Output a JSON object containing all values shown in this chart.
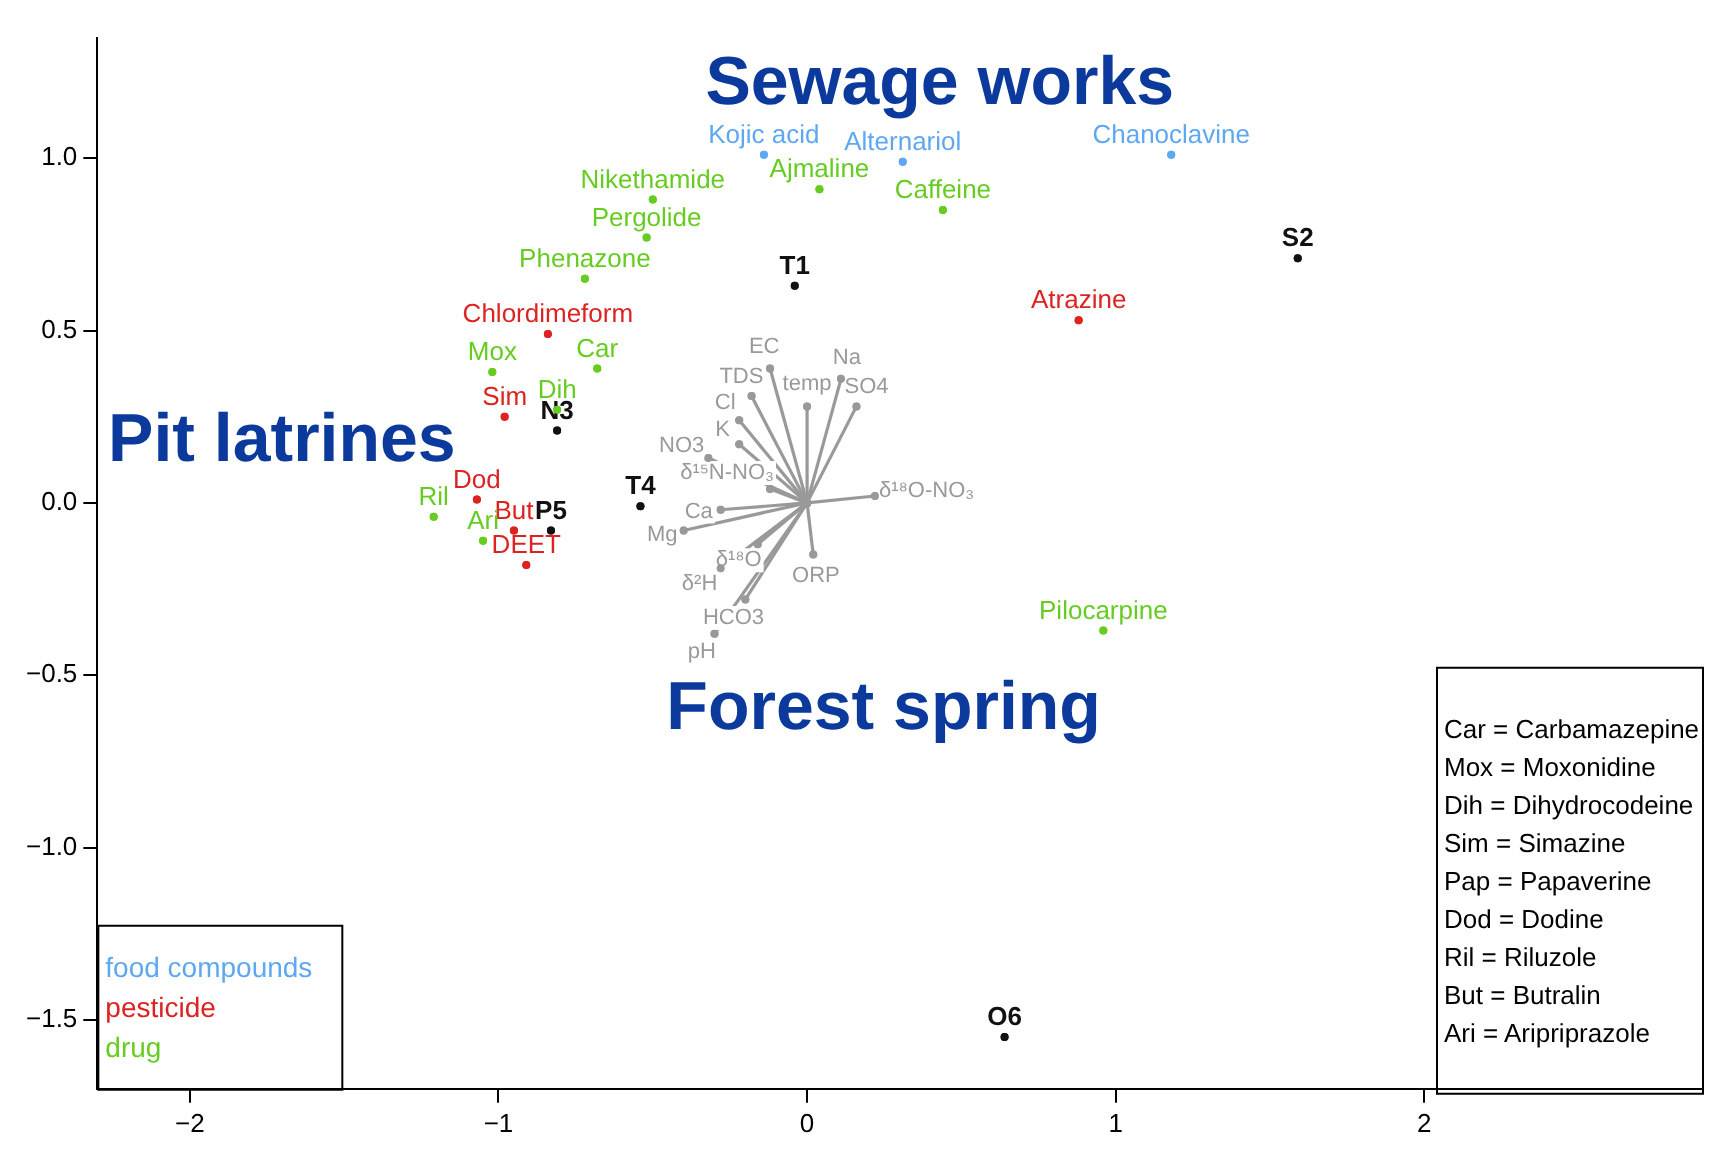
{
  "chart_data": {
    "type": "scatter",
    "marker": "circle",
    "xlim": [
      -2.3,
      2.9
    ],
    "ylim": [
      -1.7,
      1.35
    ],
    "xticks": [
      {
        "value": -2,
        "label": "−2"
      },
      {
        "value": -1,
        "label": "−1"
      },
      0,
      1,
      2
    ],
    "yticks": [
      {
        "value": -1.5,
        "label": "−1.5"
      },
      {
        "value": -1,
        "label": "−1.0"
      },
      {
        "value": -0.5,
        "label": "−0.5"
      },
      {
        "value": 0,
        "label": "0.0"
      },
      {
        "value": 0.5,
        "label": "0.5"
      },
      {
        "value": 1,
        "label": "1.0"
      }
    ],
    "series": [
      {
        "name": "food compounds",
        "color": "#5ea8f2",
        "x": [
          -0.14,
          0.31,
          1.18
        ],
        "values": [
          1.01,
          0.99,
          1.01
        ]
      },
      {
        "name": "pesticide",
        "color": "#dd2222",
        "x": [
          -0.84,
          -0.98,
          -1.07,
          -0.95,
          -0.91,
          0.88
        ],
        "values": [
          0.49,
          0.25,
          0.01,
          -0.08,
          -0.18,
          0.53
        ]
      },
      {
        "name": "drug",
        "color": "#66cc22",
        "x": [
          -0.5,
          -0.52,
          -0.72,
          0.04,
          0.44,
          -1.02,
          -0.68,
          -0.81,
          -1.21,
          -1.05,
          0.96
        ],
        "values": [
          0.88,
          0.77,
          0.65,
          0.91,
          0.85,
          0.38,
          0.39,
          0.27,
          -0.04,
          -0.11,
          -0.37
        ]
      },
      {
        "color": "#111111",
        "x": [
          -0.04,
          1.59,
          -0.81,
          -0.54,
          -0.83,
          0.64
        ],
        "values": [
          0.63,
          0.71,
          0.21,
          -0.01,
          -0.08,
          -1.55
        ]
      },
      {
        "color": "#999999",
        "type": "line",
        "x": [
          0,
          -0.12
        ],
        "values": [
          0,
          0.39
        ]
      },
      {
        "color": "#999999",
        "type": "line",
        "x": [
          0,
          0.11
        ],
        "values": [
          0,
          0.36
        ]
      },
      {
        "color": "#999999",
        "type": "line",
        "x": [
          0,
          0.0
        ],
        "values": [
          0,
          0.28
        ]
      },
      {
        "color": "#999999",
        "type": "line",
        "x": [
          0,
          0.16
        ],
        "values": [
          0,
          0.28
        ]
      },
      {
        "color": "#999999",
        "type": "line",
        "x": [
          0,
          -0.18
        ],
        "values": [
          0,
          0.31
        ]
      },
      {
        "color": "#999999",
        "type": "line",
        "x": [
          0,
          -0.22
        ],
        "values": [
          0,
          0.24
        ]
      },
      {
        "color": "#999999",
        "type": "line",
        "x": [
          0,
          -0.22
        ],
        "values": [
          0,
          0.17
        ]
      },
      {
        "color": "#999999",
        "type": "line",
        "x": [
          0,
          -0.32
        ],
        "values": [
          0,
          0.13
        ]
      },
      {
        "color": "#999999",
        "type": "line",
        "x": [
          0,
          -0.12
        ],
        "values": [
          0,
          0.04
        ]
      },
      {
        "color": "#999999",
        "type": "line",
        "x": [
          0,
          -0.4
        ],
        "values": [
          0,
          -0.08
        ]
      },
      {
        "color": "#999999",
        "type": "line",
        "x": [
          0,
          -0.28
        ],
        "values": [
          0,
          -0.02
        ]
      },
      {
        "color": "#999999",
        "type": "line",
        "x": [
          0,
          -0.16
        ],
        "values": [
          0,
          -0.12
        ]
      },
      {
        "color": "#999999",
        "type": "line",
        "x": [
          0,
          -0.28
        ],
        "values": [
          0,
          -0.19
        ]
      },
      {
        "color": "#999999",
        "type": "line",
        "x": [
          0,
          -0.2
        ],
        "values": [
          0,
          -0.28
        ]
      },
      {
        "color": "#999999",
        "type": "line",
        "x": [
          0,
          -0.3
        ],
        "values": [
          0,
          -0.38
        ]
      },
      {
        "color": "#999999",
        "type": "line",
        "x": [
          0,
          0.02
        ],
        "values": [
          0,
          -0.15
        ]
      },
      {
        "color": "#999999",
        "type": "line",
        "x": [
          0,
          0.22
        ],
        "values": [
          0,
          0.02
        ]
      }
    ],
    "annotations": [
      {
        "text": "Kojic acid",
        "x": -0.14,
        "y": 1.01
      },
      {
        "text": "Alternariol",
        "x": 0.31,
        "y": 0.99
      },
      {
        "text": "Chanoclavine",
        "x": 1.18,
        "y": 1.01
      },
      {
        "text": "Chlordimeform",
        "x": -0.84,
        "y": 0.49
      },
      {
        "text": "Sim",
        "x": -0.98,
        "y": 0.25
      },
      {
        "text": "Dod",
        "x": -1.07,
        "y": 0.01
      },
      {
        "text": "But",
        "x": -0.95,
        "y": -0.08
      },
      {
        "text": "DEET",
        "x": -0.91,
        "y": -0.18
      },
      {
        "text": "Atrazine",
        "x": 0.88,
        "y": 0.53
      },
      {
        "text": "Nikethamide",
        "x": -0.5,
        "y": 0.88
      },
      {
        "text": "Pergolide",
        "x": -0.52,
        "y": 0.77
      },
      {
        "text": "Phenazone",
        "x": -0.72,
        "y": 0.65
      },
      {
        "text": "Ajmaline",
        "x": 0.04,
        "y": 0.91
      },
      {
        "text": "Caffeine",
        "x": 0.44,
        "y": 0.85
      },
      {
        "text": "Mox",
        "x": -1.02,
        "y": 0.38
      },
      {
        "text": "Car",
        "x": -0.68,
        "y": 0.39
      },
      {
        "text": "Dih",
        "x": -0.81,
        "y": 0.27
      },
      {
        "text": "Ril",
        "x": -1.21,
        "y": -0.04
      },
      {
        "text": "Ari",
        "x": -1.05,
        "y": -0.11
      },
      {
        "text": "Pilocarpine",
        "x": 0.96,
        "y": -0.37
      },
      {
        "text": "T1",
        "x": -0.04,
        "y": 0.63
      },
      {
        "text": "S2",
        "x": 1.59,
        "y": 0.71
      },
      {
        "text": "N3",
        "x": -0.81,
        "y": 0.21
      },
      {
        "text": "T4",
        "x": -0.54,
        "y": -0.01
      },
      {
        "text": "P5",
        "x": -0.83,
        "y": -0.08
      },
      {
        "text": "O6",
        "x": 0.64,
        "y": -1.55
      },
      {
        "text": "EC",
        "x": -0.12,
        "y": 0.39
      },
      {
        "text": "Na",
        "x": 0.11,
        "y": 0.36
      },
      {
        "text": "temp",
        "x": 0.0,
        "y": 0.28
      },
      {
        "text": "SO4",
        "x": 0.16,
        "y": 0.28
      },
      {
        "text": "TDS",
        "x": -0.18,
        "y": 0.31
      },
      {
        "text": "Cl",
        "x": -0.22,
        "y": 0.24
      },
      {
        "text": "K",
        "x": -0.22,
        "y": 0.17
      },
      {
        "text": "NO3",
        "x": -0.32,
        "y": 0.13
      },
      {
        "text": "δ¹⁵N-NO₃",
        "x": -0.12,
        "y": 0.04
      },
      {
        "text": "Mg",
        "x": -0.4,
        "y": -0.08
      },
      {
        "text": "Ca",
        "x": -0.28,
        "y": -0.02
      },
      {
        "text": "δ¹⁸O",
        "x": -0.16,
        "y": -0.12
      },
      {
        "text": "δ²H",
        "x": -0.28,
        "y": -0.19
      },
      {
        "text": "HCO3",
        "x": -0.2,
        "y": -0.28
      },
      {
        "text": "pH",
        "x": -0.3,
        "y": -0.38
      },
      {
        "text": "ORP",
        "x": 0.02,
        "y": -0.15
      },
      {
        "text": "δ¹⁸O-NO₃",
        "x": 0.22,
        "y": 0.02
      },
      "Sewage works",
      "Pit latrines",
      "Forest spring",
      "Car = Carbamazepine",
      "Mox = Moxonidine",
      "Dih = Dihydrocodeine",
      "Sim = Simazine",
      "Pap = Papaverine",
      "Dod = Dodine",
      "Ril = Riluzole",
      "But = Butralin",
      "Ari = Aripriprazole"
    ]
  }
}
